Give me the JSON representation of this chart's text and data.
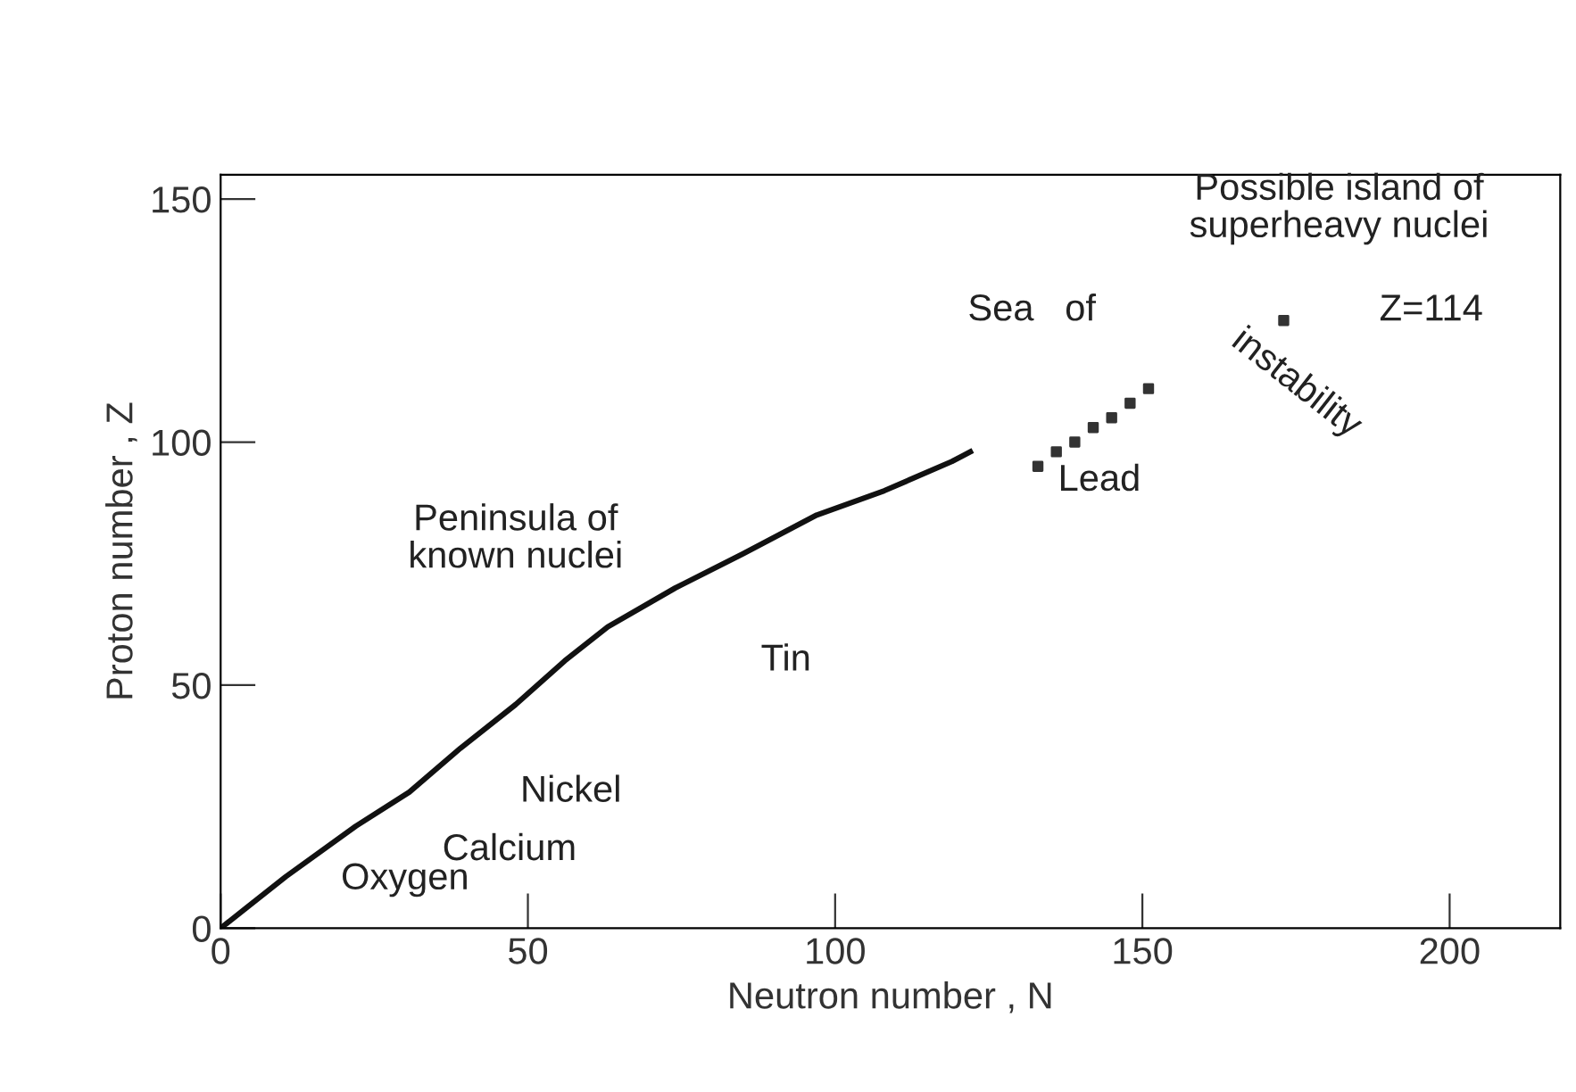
{
  "chart_data": {
    "type": "line",
    "xlabel": "Neutron number , N",
    "ylabel": "Proton number , Z",
    "xlim": [
      0,
      218
    ],
    "ylim": [
      0,
      155
    ],
    "xticks": [
      0,
      50,
      100,
      150,
      200
    ],
    "yticks": [
      0,
      50,
      100,
      150
    ],
    "grid": false,
    "legend": false,
    "series": [
      {
        "color": "#111111",
        "x": [
          0,
          10.6,
          22,
          30.7,
          39,
          48,
          56,
          63,
          74,
          85,
          97,
          108,
          119,
          122
        ],
        "values": [
          0,
          10.6,
          21,
          28,
          37,
          46,
          55,
          62,
          70,
          77,
          85,
          90,
          96,
          98
        ]
      },
      {
        "type": "scatter",
        "color": "#333333",
        "marker": "square",
        "x": [
          133,
          136,
          139,
          142,
          145,
          148,
          151
        ],
        "values": [
          95,
          98,
          100,
          103,
          105,
          108,
          111
        ]
      },
      {
        "type": "scatter",
        "color": "#333333",
        "marker": "square",
        "x": [
          173
        ],
        "values": [
          125
        ]
      }
    ],
    "annotations": [
      "Oxygen",
      "Calcium",
      "Nickel",
      "Tin",
      "Lead",
      "Z=114",
      "Peninsula of\nknown nuclei",
      "Possible island of\nsuperheavy nuclei",
      "Sea   of",
      "instability"
    ]
  }
}
